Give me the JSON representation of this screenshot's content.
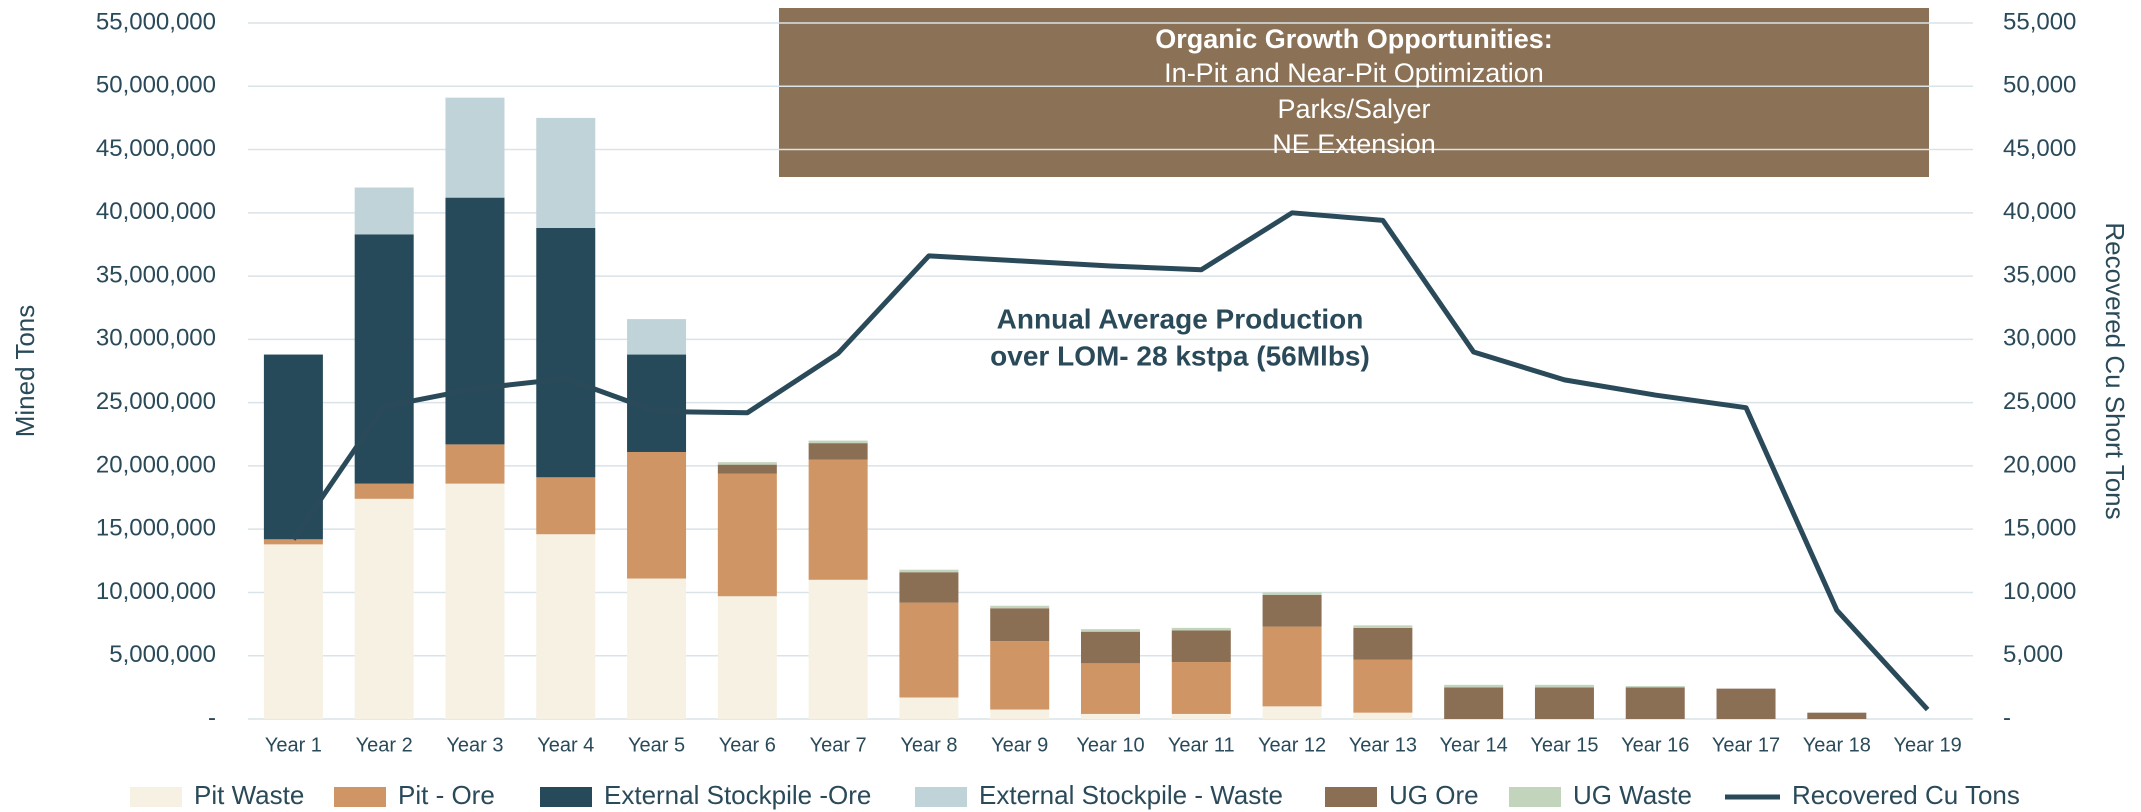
{
  "chart_data": {
    "type": "bar",
    "stacked": true,
    "annotations": [
      [
        "Organic Growth Opportunities:",
        "In-Pit and Near-Pit Optimization",
        "Parks/Salyer",
        "NE Extension"
      ],
      [
        "Annual Average Production",
        "over LOM- 28 kstpa (56Mlbs)"
      ]
    ],
    "ylabel": "Mined Tons",
    "y2label": "Recovered Cu Short Tons",
    "categories": [
      "Year 1",
      "Year 2",
      "Year 3",
      "Year 4",
      "Year 5",
      "Year 6",
      "Year 7",
      "Year 8",
      "Year 9",
      "Year 10",
      "Year 11",
      "Year 12",
      "Year 13",
      "Year 14",
      "Year 15",
      "Year 16",
      "Year 17",
      "Year 18",
      "Year 19"
    ],
    "series": [
      {
        "name": "Pit Waste",
        "color": "#f6f1e3",
        "values": [
          13800000,
          17400000,
          18600000,
          14600000,
          11100000,
          9700000,
          11000000,
          1700000,
          750000,
          400000,
          400000,
          1000000,
          500000,
          0,
          0,
          0,
          0,
          0,
          0
        ]
      },
      {
        "name": "Pit - Ore",
        "color": "#d09565",
        "values": [
          400000,
          1200000,
          3100000,
          4500000,
          10000000,
          9700000,
          9500000,
          7500000,
          5400000,
          4000000,
          4100000,
          6300000,
          4200000,
          0,
          0,
          0,
          0,
          0,
          0
        ]
      },
      {
        "name": "External Stockpile -Ore",
        "color": "#264a5a",
        "values": [
          14600000,
          19700000,
          19500000,
          19700000,
          7700000,
          0,
          0,
          0,
          0,
          0,
          0,
          0,
          0,
          0,
          0,
          0,
          0,
          0,
          0
        ]
      },
      {
        "name": "External Stockpile - Waste",
        "color": "#bfd3d8",
        "values": [
          0,
          3700000,
          7900000,
          8700000,
          2800000,
          0,
          0,
          0,
          0,
          0,
          0,
          0,
          0,
          0,
          0,
          0,
          0,
          0,
          0
        ]
      },
      {
        "name": "UG Ore",
        "color": "#8b6f55",
        "values": [
          0,
          0,
          0,
          0,
          0,
          700000,
          1300000,
          2400000,
          2600000,
          2500000,
          2500000,
          2500000,
          2500000,
          2500000,
          2500000,
          2500000,
          2400000,
          500000,
          0
        ]
      },
      {
        "name": "UG Waste",
        "color": "#c3d4bc",
        "values": [
          0,
          0,
          0,
          0,
          0,
          200000,
          200000,
          200000,
          200000,
          200000,
          200000,
          200000,
          200000,
          200000,
          200000,
          100000,
          0,
          0,
          0
        ]
      },
      {
        "name": "Recovered Cu Tons",
        "color": "#2a4a5a",
        "type": "line",
        "axis": "y2",
        "values": [
          14200,
          24700,
          26100,
          26900,
          24300,
          24200,
          28900,
          36600,
          36200,
          35800,
          35500,
          40000,
          39400,
          29000,
          26800,
          25600,
          24600,
          8600,
          750
        ]
      }
    ],
    "ylim": [
      0,
      55000000
    ],
    "yticks": [
      {
        "value": 0,
        "label": "-"
      },
      {
        "value": 5000000,
        "label": "5,000,000"
      },
      {
        "value": 10000000,
        "label": "10,000,000"
      },
      {
        "value": 15000000,
        "label": "15,000,000"
      },
      {
        "value": 20000000,
        "label": "20,000,000"
      },
      {
        "value": 25000000,
        "label": "25,000,000"
      },
      {
        "value": 30000000,
        "label": "30,000,000"
      },
      {
        "value": 35000000,
        "label": "35,000,000"
      },
      {
        "value": 40000000,
        "label": "40,000,000"
      },
      {
        "value": 45000000,
        "label": "45,000,000"
      },
      {
        "value": 50000000,
        "label": "50,000,000"
      },
      {
        "value": 55000000,
        "label": "55,000,000"
      }
    ],
    "y2lim": [
      0,
      55000
    ],
    "y2ticks": [
      {
        "value": 0,
        "label": "-"
      },
      {
        "value": 5000,
        "label": "5,000"
      },
      {
        "value": 10000,
        "label": "10,000"
      },
      {
        "value": 15000,
        "label": "15,000"
      },
      {
        "value": 20000,
        "label": "20,000"
      },
      {
        "value": 25000,
        "label": "25,000"
      },
      {
        "value": 30000,
        "label": "30,000"
      },
      {
        "value": 35000,
        "label": "35,000"
      },
      {
        "value": 40000,
        "label": "40,000"
      },
      {
        "value": 45000,
        "label": "45,000"
      },
      {
        "value": 50000,
        "label": "50,000"
      },
      {
        "value": 55000,
        "label": "55,000"
      }
    ],
    "grid": true,
    "legend": "bottom"
  }
}
